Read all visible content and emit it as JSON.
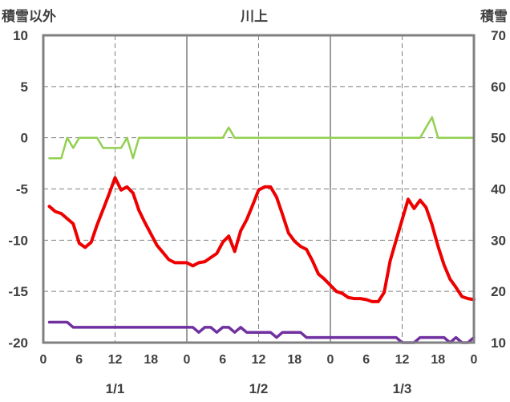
{
  "chart_data": {
    "type": "line",
    "title": "川上",
    "left_axis_title": "積雪以外",
    "right_axis_title": "積雪",
    "ylim_left": [
      -20,
      10
    ],
    "ylim_right": [
      10,
      70
    ],
    "y_ticks_left": [
      "10",
      "5",
      "0",
      "-5",
      "-10",
      "-15",
      "-20"
    ],
    "y_ticks_right": [
      "70",
      "60",
      "50",
      "40",
      "30",
      "20",
      "10"
    ],
    "x_hour_ticks": [
      "0",
      "6",
      "12",
      "18",
      "0",
      "6",
      "12",
      "18",
      "0",
      "6",
      "12",
      "18",
      "0"
    ],
    "x_date_labels": [
      "1/1",
      "1/2",
      "1/3"
    ],
    "grid": true,
    "colors": {
      "temperature": "#ee0000",
      "precipitation": "#92d050",
      "snow_depth": "#7030a0",
      "frame": "#808080"
    },
    "series": [
      {
        "axis": "left",
        "x": [
          1,
          2,
          3,
          4,
          5,
          6,
          7,
          8,
          9,
          10,
          11,
          12,
          13,
          14,
          15,
          16,
          17,
          18,
          19,
          20,
          21,
          22,
          23,
          24,
          25,
          26,
          27,
          28,
          29,
          30,
          31,
          32,
          33,
          34,
          35,
          36,
          37,
          38,
          39,
          40,
          41,
          42,
          43,
          44,
          45,
          46,
          47,
          48,
          49,
          50,
          51,
          52,
          53,
          54,
          55,
          56,
          57,
          58,
          59,
          60,
          61,
          62,
          63,
          64,
          65,
          66,
          67,
          68,
          69,
          70,
          71,
          72
        ],
        "values": [
          -6.7,
          -7.2,
          -7.4,
          -7.9,
          -8.4,
          -10.3,
          -10.7,
          -10.2,
          -8.5,
          -7.0,
          -5.5,
          -3.9,
          -5.1,
          -4.8,
          -5.4,
          -7.1,
          -8.3,
          -9.4,
          -10.5,
          -11.2,
          -11.9,
          -12.2,
          -12.2,
          -12.2,
          -12.5,
          -12.2,
          -12.1,
          -11.7,
          -11.3,
          -10.2,
          -9.6,
          -11.1,
          -9.1,
          -8.0,
          -6.6,
          -5.1,
          -4.8,
          -4.8,
          -5.8,
          -7.5,
          -9.3,
          -10.1,
          -10.6,
          -10.9,
          -12.0,
          -13.3,
          -13.8,
          -14.4,
          -15.0,
          -15.2,
          -15.6,
          -15.7,
          -15.7,
          -15.8,
          -16.0,
          -16.0,
          -15.1,
          -12.0,
          -10.0,
          -8.0,
          -6.0,
          -6.9,
          -6.1,
          -6.8,
          -8.5,
          -10.6,
          -12.4,
          -13.8,
          -14.6,
          -15.5,
          -15.7,
          -15.8
        ]
      },
      {
        "axis": "left",
        "x": [
          1,
          2,
          3,
          4,
          5,
          6,
          7,
          8,
          9,
          10,
          11,
          12,
          13,
          14,
          15,
          16,
          17,
          18,
          19,
          20,
          21,
          22,
          23,
          24,
          25,
          26,
          27,
          28,
          29,
          30,
          31,
          32,
          33,
          34,
          35,
          36,
          37,
          38,
          39,
          40,
          41,
          42,
          43,
          44,
          45,
          46,
          47,
          48,
          49,
          50,
          51,
          52,
          53,
          54,
          55,
          56,
          57,
          58,
          59,
          60,
          61,
          62,
          63,
          64,
          65,
          66,
          67,
          68,
          69,
          70,
          71,
          72
        ],
        "values": [
          -2,
          -2,
          -2,
          0,
          -1,
          0,
          0,
          0,
          0,
          -1,
          -1,
          -1,
          -1,
          0,
          -2,
          0,
          0,
          0,
          0,
          0,
          0,
          0,
          0,
          0,
          0,
          0,
          0,
          0,
          0,
          0,
          1,
          0,
          0,
          0,
          0,
          0,
          0,
          0,
          0,
          0,
          0,
          0,
          0,
          0,
          0,
          0,
          0,
          0,
          0,
          0,
          0,
          0,
          0,
          0,
          0,
          0,
          0,
          0,
          0,
          0,
          0,
          0,
          0,
          1,
          2,
          0,
          0,
          0,
          0,
          0,
          0,
          0
        ]
      },
      {
        "axis": "right",
        "x": [
          1,
          2,
          3,
          4,
          5,
          6,
          7,
          8,
          9,
          10,
          11,
          12,
          13,
          14,
          15,
          16,
          17,
          18,
          19,
          20,
          21,
          22,
          23,
          24,
          25,
          26,
          27,
          28,
          29,
          30,
          31,
          32,
          33,
          34,
          35,
          36,
          37,
          38,
          39,
          40,
          41,
          42,
          43,
          44,
          45,
          46,
          47,
          48,
          49,
          50,
          51,
          52,
          53,
          54,
          55,
          56,
          57,
          58,
          59,
          60,
          61,
          62,
          63,
          64,
          65,
          66,
          67,
          68,
          69,
          70,
          71,
          72
        ],
        "values": [
          14,
          14,
          14,
          14,
          13,
          13,
          13,
          13,
          13,
          13,
          13,
          13,
          13,
          13,
          13,
          13,
          13,
          13,
          13,
          13,
          13,
          13,
          13,
          13,
          13,
          12,
          13,
          13,
          12,
          13,
          13,
          12,
          13,
          12,
          12,
          12,
          12,
          12,
          11,
          12,
          12,
          12,
          12,
          11,
          11,
          11,
          11,
          11,
          11,
          11,
          11,
          11,
          11,
          11,
          11,
          11,
          11,
          11,
          11,
          10,
          10,
          10,
          11,
          11,
          11,
          11,
          11,
          10,
          11,
          10,
          10,
          11
        ]
      }
    ]
  }
}
